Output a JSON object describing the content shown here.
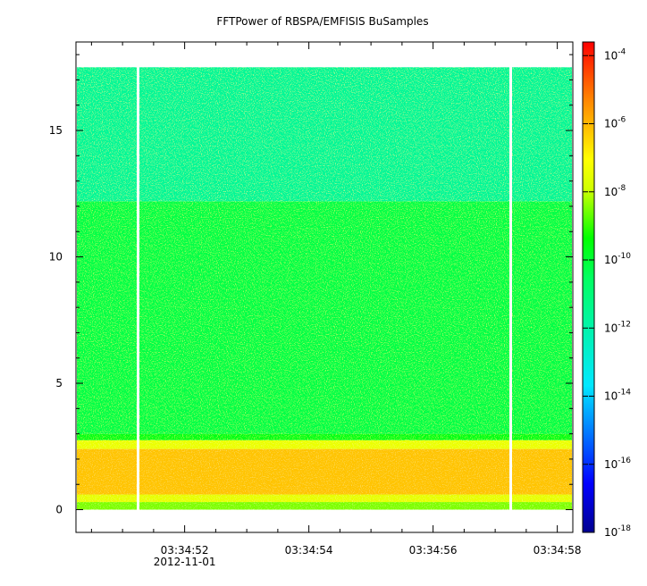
{
  "chart_data": {
    "type": "heatmap",
    "title": "FFTPower of RBSPA/EMFISIS  BuSamples",
    "xlabel": "",
    "ylabel": "",
    "x_ticks": [
      {
        "t": 52,
        "label": "03:34:52",
        "sublabel": "2012-11-01"
      },
      {
        "t": 54,
        "label": "03:34:54",
        "sublabel": ""
      },
      {
        "t": 56,
        "label": "03:34:56",
        "sublabel": ""
      },
      {
        "t": 58,
        "label": "03:34:58",
        "sublabel": ""
      }
    ],
    "xlim_seconds_of_minute": [
      50.25,
      58.25
    ],
    "ylim": [
      -0.9,
      18.5
    ],
    "y_ticks": [
      0,
      5,
      10,
      15
    ],
    "data_extent_y": [
      0,
      17.5
    ],
    "data_gaps_seconds": [
      51.25,
      57.25
    ],
    "colorbar": {
      "scale": "log",
      "range_exponent": [
        -18,
        -3.6
      ],
      "ticks": [
        {
          "base": "10",
          "exp": "-4",
          "e": -4
        },
        {
          "base": "10",
          "exp": "-6",
          "e": -6
        },
        {
          "base": "10",
          "exp": "-8",
          "e": -8
        },
        {
          "base": "10",
          "exp": "-10",
          "e": -10
        },
        {
          "base": "10",
          "exp": "-12",
          "e": -12
        },
        {
          "base": "10",
          "exp": "-14",
          "e": -14
        },
        {
          "base": "10",
          "exp": "-16",
          "e": -16
        },
        {
          "base": "10",
          "exp": "-18",
          "e": -18
        }
      ]
    },
    "bands": [
      {
        "y0": 0,
        "y1": 0.3,
        "log_power": -8.5
      },
      {
        "y0": 0.3,
        "y1": 0.6,
        "log_power": -7.5
      },
      {
        "y0": 0.6,
        "y1": 2.4,
        "log_power": -6.2
      },
      {
        "y0": 2.4,
        "y1": 2.75,
        "log_power": -7.4
      },
      {
        "y0": 2.75,
        "y1": 3.0,
        "log_power": -9.6
      },
      {
        "y0": 3.0,
        "y1": 12.2,
        "log_power": -10.2
      },
      {
        "y0": 12.2,
        "y1": 17.5,
        "log_power": -11.6
      }
    ],
    "grid": false,
    "legend": "colorbar-right"
  }
}
